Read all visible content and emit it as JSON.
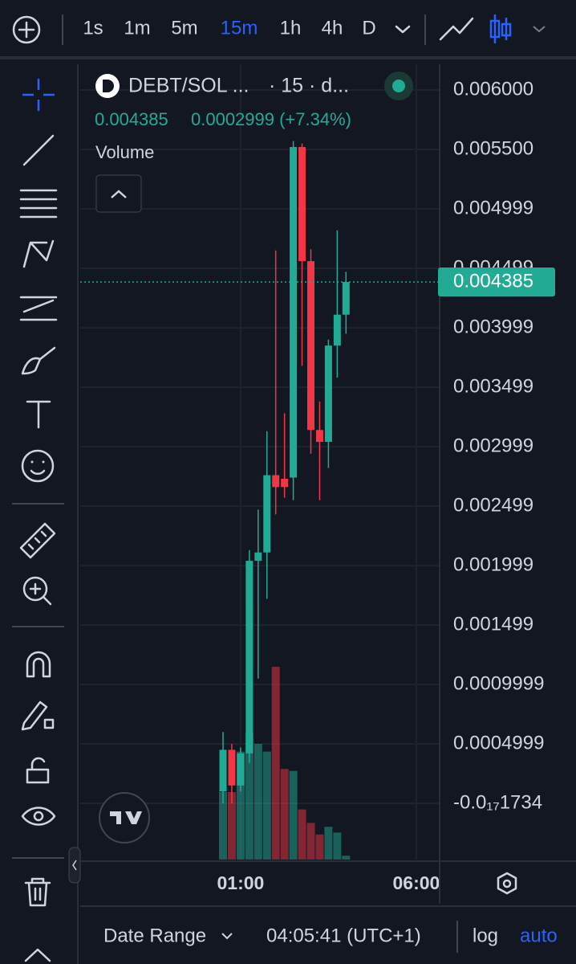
{
  "toolbar": {
    "intervals": [
      "1s",
      "1m",
      "5m",
      "15m",
      "1h",
      "4h",
      "D"
    ],
    "active_interval": 3
  },
  "chart_data": {
    "type": "candlestick",
    "title": "DEBT/SOL ...",
    "subtitle": "· 15 · d...",
    "change_label": "0.0002999 (+7.34%)",
    "volume_label": "Volume",
    "categories": [
      null,
      null,
      "01:00",
      null,
      null,
      null,
      null,
      null,
      null,
      null,
      null,
      null,
      null,
      null,
      null,
      null,
      null,
      null,
      null,
      null,
      null,
      null,
      "06:00"
    ],
    "open": [
      0.0001,
      0.00045,
      0.00015,
      0.00042,
      0.00204,
      0.00211,
      0.00276,
      0.00273,
      0.00274,
      0.00552,
      0.00456,
      0.00314,
      0.00304,
      0.00385,
      0.00411,
      null,
      null,
      null,
      null,
      null,
      null,
      null,
      null
    ],
    "high": [
      0.0006,
      0.0005,
      0.00047,
      0.00213,
      0.00247,
      0.00313,
      0.00465,
      0.00328,
      0.00557,
      0.00555,
      0.00466,
      0.00338,
      0.0039,
      0.00482,
      0.00447,
      null,
      null,
      null,
      null,
      null,
      null,
      null,
      null
    ],
    "low": [
      0.0,
      0.0,
      0.0001,
      0.00034,
      0.00105,
      0.00172,
      0.00243,
      0.00257,
      0.00255,
      0.00368,
      0.00294,
      0.00255,
      0.00282,
      0.00358,
      0.00395,
      null,
      null,
      null,
      null,
      null,
      null,
      null,
      null
    ],
    "close": [
      0.00045,
      0.00015,
      0.00042,
      0.00204,
      0.00211,
      0.00276,
      0.00266,
      0.00266,
      0.00552,
      0.00456,
      0.00314,
      0.00304,
      0.00385,
      0.00411,
      0.004385,
      null,
      null,
      null,
      null,
      null,
      null,
      null,
      null
    ],
    "volume": [
      35,
      35,
      56,
      66,
      60,
      56,
      100,
      47,
      46,
      26,
      19,
      13,
      17,
      14,
      2,
      null,
      null,
      null,
      null,
      null,
      null,
      null,
      null
    ],
    "volume_ylim": [
      0,
      100
    ],
    "up_color": "#22ab94",
    "down_color": "#f23645",
    "ylim": [
      -0.000473,
      0.006216
    ],
    "yticks": [
      {
        "value": 0.006,
        "label": "0.006000"
      },
      {
        "value": 0.0055,
        "label": "0.005500"
      },
      0.004999,
      0.004499,
      0.003999,
      0.003499,
      0.002999,
      0.002499,
      0.001999,
      0.001499,
      0.0009999,
      0.0004999,
      {
        "value": -1.734e-18,
        "label": "-0.0₁₇1734"
      }
    ],
    "grid": true
  },
  "footer": {
    "date_range": "Date Range",
    "clock": "04:05:41 (UTC+1)",
    "log": "log",
    "auto": "auto"
  }
}
